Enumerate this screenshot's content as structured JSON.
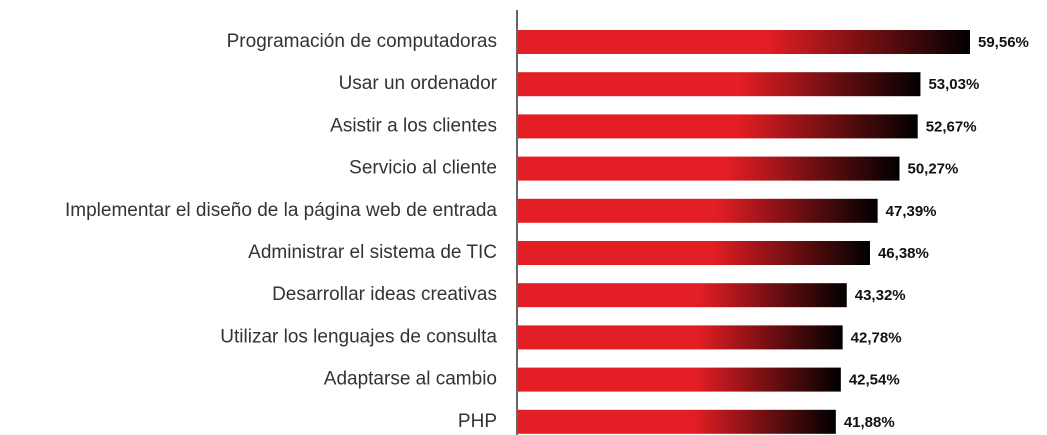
{
  "chart_data": {
    "type": "bar",
    "orientation": "horizontal",
    "categories": [
      "Programación de computadoras",
      "Usar un ordenador",
      "Asistir a los clientes",
      "Servicio al cliente",
      "Implementar el diseño de la página web de entrada",
      "Administrar el sistema de TIC",
      "Desarrollar ideas creativas",
      "Utilizar los lenguajes de consulta",
      "Adaptarse al cambio",
      "PHP"
    ],
    "values": [
      59.56,
      53.03,
      52.67,
      50.27,
      47.39,
      46.38,
      43.32,
      42.78,
      42.54,
      41.88
    ],
    "value_labels": [
      "59,56%",
      "53,03%",
      "52,67%",
      "50,27%",
      "47,39%",
      "46,38%",
      "43,32%",
      "42,78%",
      "42,54%",
      "41,88%"
    ],
    "colors": [
      "#e31e24",
      "#000000"
    ]
  }
}
